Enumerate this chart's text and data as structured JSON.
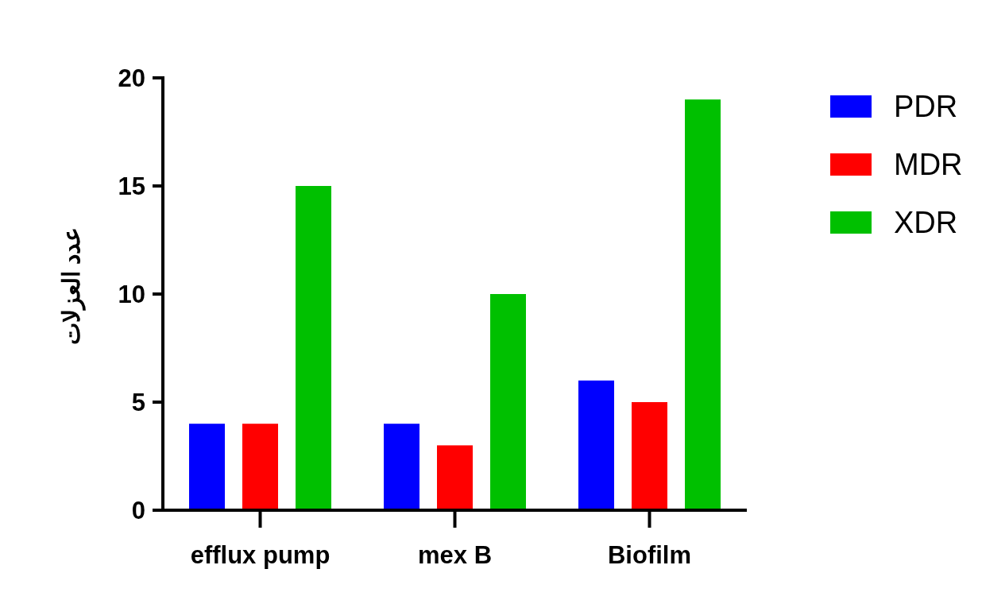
{
  "chart_data": {
    "type": "bar",
    "ylabel": "عدد العزلات",
    "categories": [
      "efflux pump",
      "mex B",
      "Biofilm"
    ],
    "series": [
      {
        "name": "PDR",
        "color": "#0000ff",
        "values": [
          4,
          4,
          6
        ]
      },
      {
        "name": "MDR",
        "color": "#ff0000",
        "values": [
          4,
          3,
          5
        ]
      },
      {
        "name": "XDR",
        "color": "#00c000",
        "values": [
          15,
          10,
          19
        ]
      }
    ],
    "ylim": [
      0,
      20
    ],
    "yticks": [
      0,
      5,
      10,
      15,
      20
    ],
    "legend": "right",
    "grid": false
  }
}
